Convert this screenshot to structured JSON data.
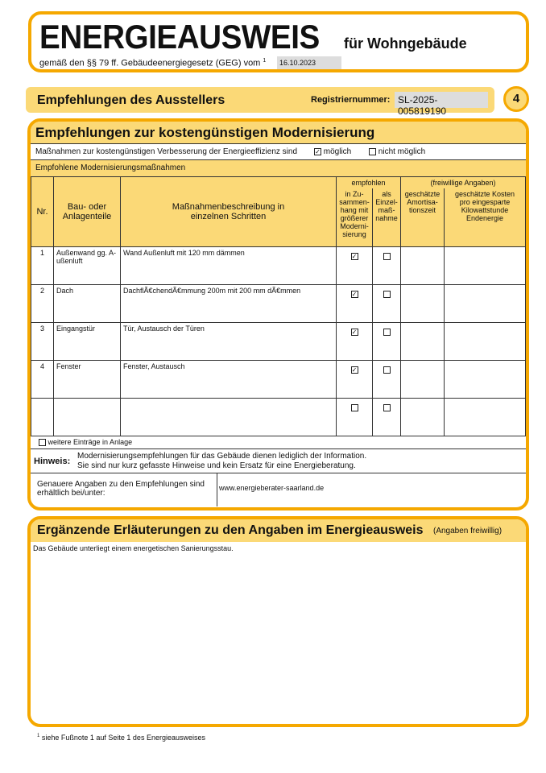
{
  "header": {
    "title": "ENERGIEAUSWEIS",
    "subtitle": "für Wohngebäude",
    "law_text": "gemäß den §§ 79 ff. Gebäudeenergiegesetz (GEG) vom",
    "footnote_mark": "1",
    "law_date": "16.10.2023"
  },
  "section_bar": {
    "title": "Empfehlungen des Ausstellers",
    "reg_label": "Registriernummer:",
    "reg_value": "SL-2025-005819190",
    "page_number": "4"
  },
  "modernisierung": {
    "title": "Empfehlungen zur kostengünstigen Modernisierung",
    "possible_text": "Maßnahmen zur kostengünstigen Verbesserung der Energieeffizienz sind",
    "possible_label": "möglich",
    "possible_checked": true,
    "not_possible_label": "nicht möglich",
    "not_possible_checked": false,
    "subheading": "Empfohlene Modernisierungsmaßnahmen",
    "columns": {
      "nr": "Nr.",
      "part": "Bau- oder Anlagenteile",
      "desc": "Maßnahmenbeschreibung in einzelnen Schritten",
      "recommended": "empfohlen",
      "combined": "in Zu-sammen-hang mit größerer Moderni-sierung",
      "single": "als Einzel-maß-nahme",
      "voluntary": "(freiwillige Angaben)",
      "amort": "geschätzte Amortisa-tionszeit",
      "cost": "geschätzte Kosten pro eingesparte Kilowattstunde Endenergie"
    },
    "rows": [
      {
        "nr": "1",
        "part": "Außenwand gg. A-ußenluft",
        "desc": "Wand Außenluft mit 120 mm dämmen",
        "combined": true,
        "single": false,
        "amort": "",
        "cost": ""
      },
      {
        "nr": "2",
        "part": "Dach",
        "desc": "DachflÃ€chendÃ€mmung 200m mit 200 mm dÃ€mmen",
        "combined": true,
        "single": false,
        "amort": "",
        "cost": ""
      },
      {
        "nr": "3",
        "part": "Eingangstür",
        "desc": "Tür, Austausch der Türen",
        "combined": true,
        "single": false,
        "amort": "",
        "cost": ""
      },
      {
        "nr": "4",
        "part": "Fenster",
        "desc": "Fenster, Austausch",
        "combined": true,
        "single": false,
        "amort": "",
        "cost": ""
      },
      {
        "nr": "",
        "part": "",
        "desc": "",
        "combined": false,
        "single": false,
        "amort": "",
        "cost": ""
      }
    ],
    "more_entries": "weitere Einträge in Anlage",
    "hint_label": "Hinweis:",
    "hint_text_1": "Modernisierungsempfehlungen für das Gebäude dienen lediglich der Information.",
    "hint_text_2": "Sie sind nur kurz gefasste Hinweise und kein Ersatz für eine Energieberatung.",
    "more_info_label": "Genauere Angaben zu den Empfehlungen sind erhältlich bei/unter:",
    "more_info_value": "www.energieberater-saarland.de"
  },
  "erlaeuterungen": {
    "title": "Ergänzende Erläuterungen zu den Angaben im Energieausweis",
    "note": "(Angaben freiwillig)",
    "text": "Das Gebäude unterliegt einem energetischen Sanierungsstau."
  },
  "footnote": {
    "mark": "1",
    "text": "siehe Fußnote 1 auf Seite 1 des Energieausweises"
  }
}
